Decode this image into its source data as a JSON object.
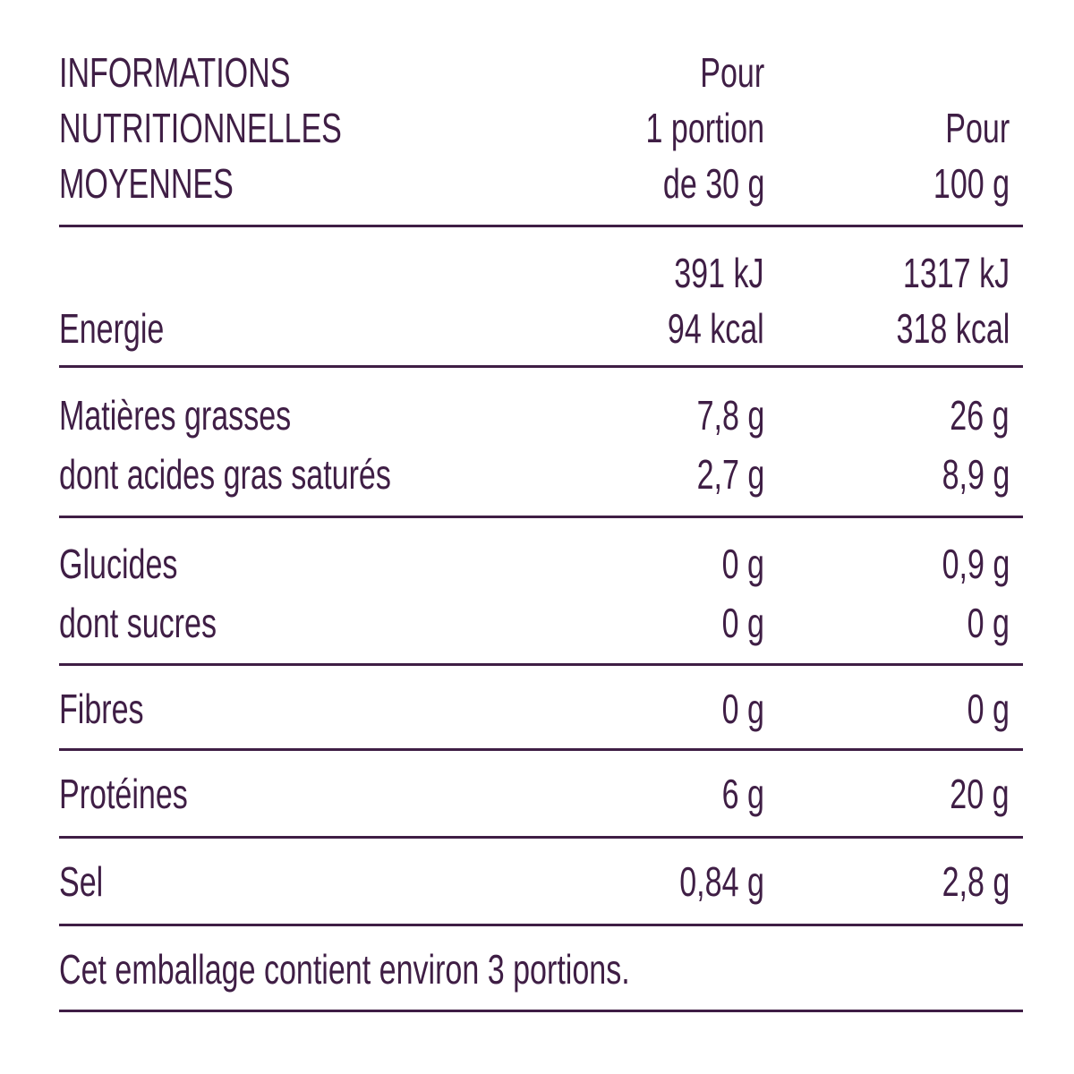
{
  "header": {
    "title_lines": [
      "INFORMATIONS",
      "NUTRITIONNELLES",
      "MOYENNES"
    ],
    "col1_lines": [
      "Pour",
      "1 portion",
      "de 30 g"
    ],
    "col2_lines": [
      "Pour",
      "100 g"
    ]
  },
  "energy": {
    "label": "Energie",
    "col1_kj": "391 kJ",
    "col1_kcal": "94 kcal",
    "col2_kj": "1317 kJ",
    "col2_kcal": "318 kcal"
  },
  "fat": {
    "label": "Matières grasses",
    "col1": "7,8 g",
    "col2": "26 g",
    "sub_label": "dont acides gras saturés",
    "sub_col1": "2,7 g",
    "sub_col2": "8,9 g"
  },
  "carbs": {
    "label": "Glucides",
    "col1": "0 g",
    "col2": "0,9 g",
    "sub_label": "dont sucres",
    "sub_col1": "0 g",
    "sub_col2": "0 g"
  },
  "fibre": {
    "label": "Fibres",
    "col1": "0 g",
    "col2": "0 g"
  },
  "protein": {
    "label": "Protéines",
    "col1": "6 g",
    "col2": "20 g"
  },
  "salt": {
    "label": "Sel",
    "col1": "0,84 g",
    "col2": "2,8 g"
  },
  "footer": {
    "note": "Cet emballage contient environ 3 portions."
  },
  "colors": {
    "text": "#3f1e45",
    "rule": "#3f1e45",
    "background": "#ffffff"
  }
}
